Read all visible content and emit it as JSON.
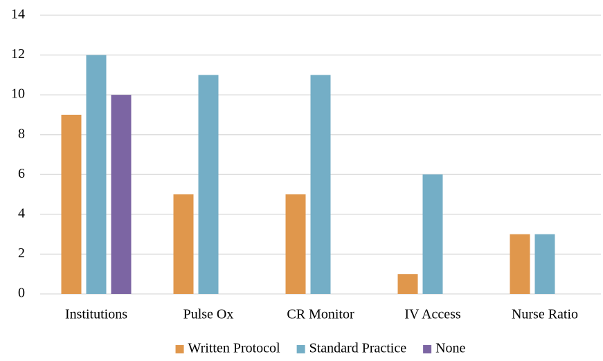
{
  "chart_data": {
    "type": "bar",
    "categories": [
      "Institutions",
      "Pulse Ox",
      "CR Monitor",
      "IV Access",
      "Nurse Ratio"
    ],
    "series": [
      {
        "name": "Written Protocol",
        "color": "#e0974c",
        "values": [
          9,
          5,
          5,
          1,
          3
        ]
      },
      {
        "name": "Standard Practice",
        "color": "#74aec6",
        "values": [
          12,
          11,
          11,
          6,
          3
        ]
      },
      {
        "name": "None",
        "color": "#7c65a3",
        "values": [
          10,
          null,
          null,
          null,
          null
        ]
      }
    ],
    "ylim": [
      0,
      14
    ],
    "yticks": [
      0,
      2,
      4,
      6,
      8,
      10,
      12,
      14
    ],
    "grid": true,
    "legend": "bottom"
  }
}
